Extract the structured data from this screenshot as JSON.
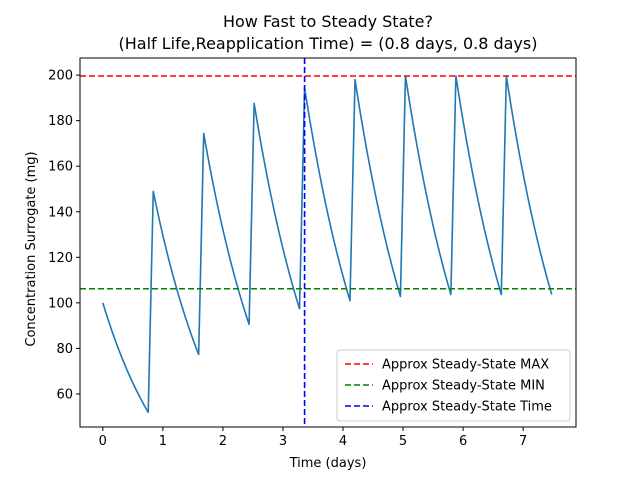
{
  "chart_data": {
    "type": "line",
    "title": "How Fast to Steady State?",
    "subtitle": "(Half Life,Reapplication Time) = (0.8 days, 0.8 days)",
    "xlabel": "Time (days)",
    "ylabel": "Concentration Surrogate (mg)",
    "xlim": [
      -0.38,
      7.88
    ],
    "ylim": [
      45.5,
      207.5
    ],
    "xticks": [
      0,
      1,
      2,
      3,
      4,
      5,
      6,
      7
    ],
    "yticks": [
      60,
      80,
      100,
      120,
      140,
      160,
      180,
      200
    ],
    "grid": false,
    "legend_position": "lower-right",
    "dose_interval_days": 0.84,
    "half_life_days": 0.8,
    "dose_mg": 100,
    "series": [
      {
        "color": "#1f77b4",
        "x_end": 7.5
      }
    ],
    "reference_lines": [
      {
        "label": "Approx Steady-State MAX",
        "orientation": "horizontal",
        "value": 199.6,
        "color": "#ff0000"
      },
      {
        "label": "Approx Steady-State MIN",
        "orientation": "horizontal",
        "value": 106.2,
        "color": "#008000"
      },
      {
        "label": "Approx Steady-State Time",
        "orientation": "vertical",
        "value": 3.36,
        "color": "#0000ff"
      }
    ]
  }
}
